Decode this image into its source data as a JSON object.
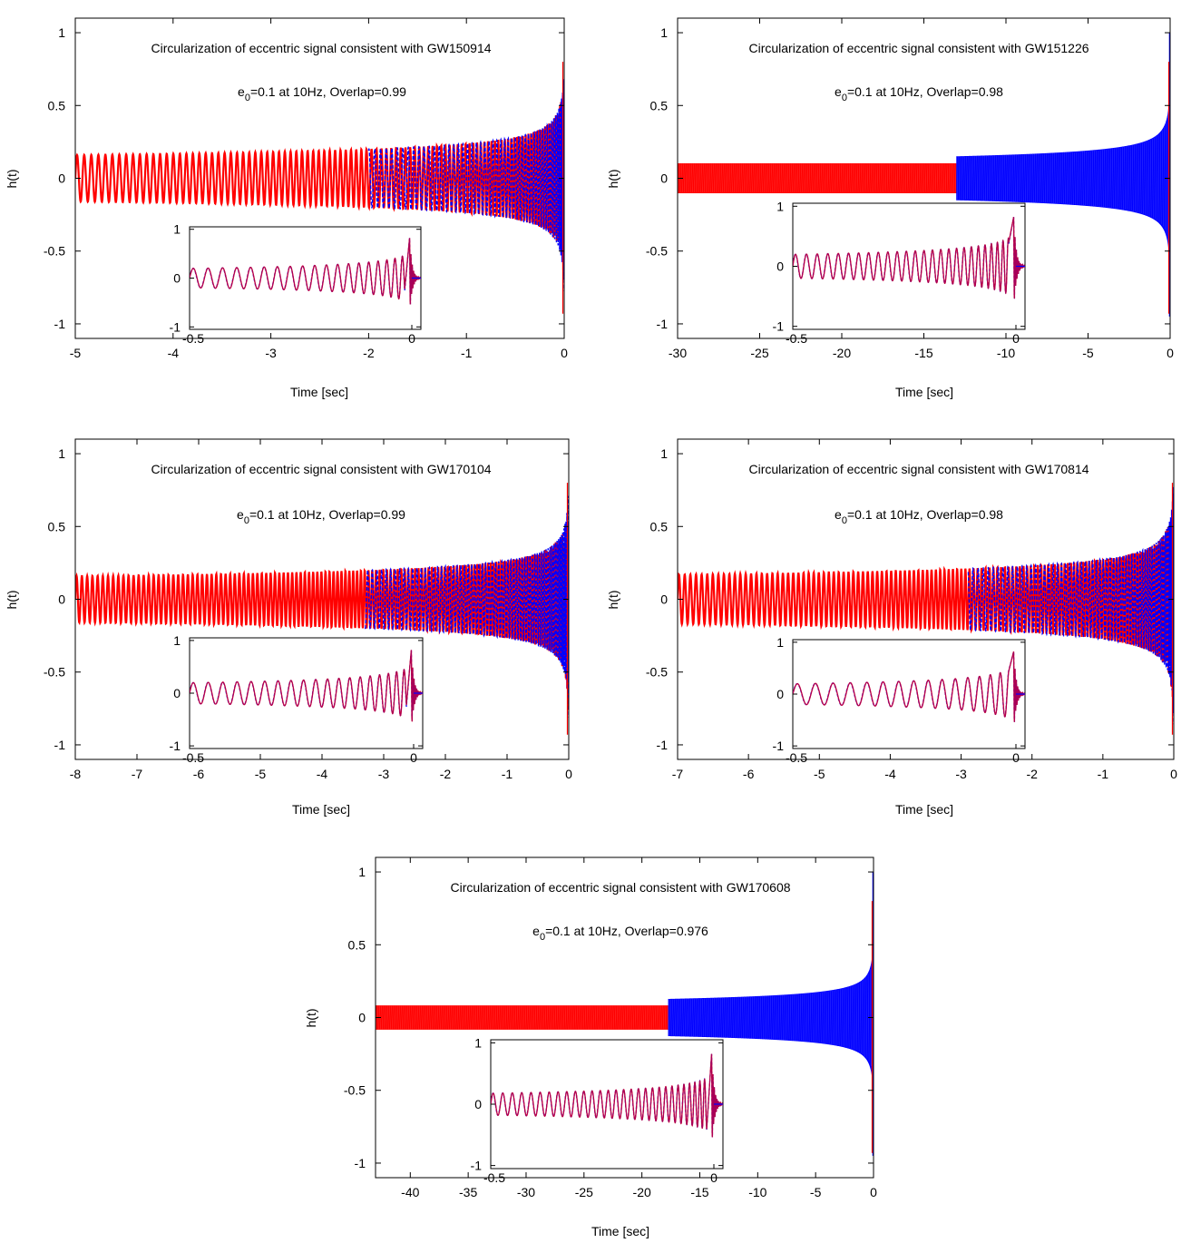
{
  "chart_data": [
    {
      "type": "line",
      "title": "Circularization of eccentric signal consistent with GW150914",
      "subtitle_prefix": "e",
      "subtitle_sub": "0",
      "subtitle_rest": "=0.1 at 10Hz, Overlap=0.99",
      "xlabel": "Time [sec]",
      "ylabel": "h(t)",
      "xlim": [
        -5,
        0
      ],
      "ylim": [
        -1.1,
        1.1
      ],
      "xticks": [
        -5,
        -4,
        -3,
        -2,
        -1,
        0
      ],
      "xtick_labels": [
        "-5",
        "-4",
        "-3",
        "-2",
        "-1",
        "0"
      ],
      "yticks": [
        -1,
        -0.5,
        0,
        0.5,
        1
      ],
      "ytick_labels": [
        "-1",
        "-0.5",
        "0",
        "0.5",
        "1"
      ],
      "series": [
        {
          "color": "#ff0000",
          "t_start": -5,
          "t_end": 0,
          "amp_start": 0.16,
          "amp_end": 1.0,
          "cycles": 110
        },
        {
          "color": "#0000ff",
          "t_start": -2.0,
          "t_end": 0,
          "amp_start": 0.16,
          "amp_end": 1.0,
          "cycles": 95
        }
      ],
      "inset": {
        "xlim": [
          -0.5,
          0
        ],
        "ylim": [
          -1.05,
          1.05
        ],
        "xtick_labels": [
          "-0.5",
          "0"
        ],
        "ytick_labels": [
          "-1",
          "0",
          "1"
        ],
        "cycles": 22,
        "amp_start": 0.2,
        "amp_end": 1.0
      }
    },
    {
      "type": "line",
      "title": "Circularization of eccentric signal consistent with GW151226",
      "subtitle_prefix": "e",
      "subtitle_sub": "0",
      "subtitle_rest": "=0.1 at 10Hz, Overlap=0.98",
      "xlabel": "Time [sec]",
      "ylabel": "h(t)",
      "xlim": [
        -30,
        0
      ],
      "ylim": [
        -1.1,
        1.1
      ],
      "xticks": [
        -30,
        -25,
        -20,
        -15,
        -10,
        -5,
        0
      ],
      "xtick_labels": [
        "-30",
        "-25",
        "-20",
        "-15",
        "-10",
        "-5",
        "0"
      ],
      "yticks": [
        -1,
        -0.5,
        0,
        0.5,
        1
      ],
      "ytick_labels": [
        "-1",
        "-0.5",
        "0",
        "0.5",
        "1"
      ],
      "series": [
        {
          "color": "#ff0000",
          "t_start": -30,
          "t_end": -13,
          "amp_start": 0.1,
          "amp_end": 0.1,
          "cycles": 0
        },
        {
          "color": "#0000ff",
          "t_start": -13,
          "t_end": 0,
          "amp_start": 0.12,
          "amp_end": 1.0,
          "cycles": 0
        }
      ],
      "inset": {
        "xlim": [
          -0.5,
          0
        ],
        "ylim": [
          -1.05,
          1.05
        ],
        "xtick_labels": [
          "-0.5",
          "0"
        ],
        "ytick_labels": [
          "-1",
          "0",
          "1"
        ],
        "cycles": 30,
        "amp_start": 0.2,
        "amp_end": 1.0
      }
    },
    {
      "type": "line",
      "title": "Circularization of eccentric signal consistent with GW170104",
      "subtitle_prefix": "e",
      "subtitle_sub": "0",
      "subtitle_rest": "=0.1 at 10Hz, Overlap=0.99",
      "xlabel": "Time [sec]",
      "ylabel": "h(t)",
      "xlim": [
        -8,
        0
      ],
      "ylim": [
        -1.1,
        1.1
      ],
      "xticks": [
        -8,
        -7,
        -6,
        -5,
        -4,
        -3,
        -2,
        -1,
        0
      ],
      "xtick_labels": [
        "-8",
        "-7",
        "-6",
        "-5",
        "-4",
        "-3",
        "-2",
        "-1",
        "0"
      ],
      "yticks": [
        -1,
        -0.5,
        0,
        0.5,
        1
      ],
      "ytick_labels": [
        "-1",
        "-0.5",
        "0",
        "0.5",
        "1"
      ],
      "series": [
        {
          "color": "#ff0000",
          "t_start": -8,
          "t_end": 0,
          "amp_start": 0.16,
          "amp_end": 1.0,
          "cycles": 150
        },
        {
          "color": "#0000ff",
          "t_start": -3.3,
          "t_end": 0,
          "amp_start": 0.16,
          "amp_end": 1.0,
          "cycles": 120
        }
      ],
      "inset": {
        "xlim": [
          -0.5,
          0
        ],
        "ylim": [
          -1.05,
          1.05
        ],
        "xtick_labels": [
          "-0.5",
          "0"
        ],
        "ytick_labels": [
          "-1",
          "0",
          "1"
        ],
        "cycles": 22,
        "amp_start": 0.2,
        "amp_end": 1.0
      }
    },
    {
      "type": "line",
      "title": "Circularization of eccentric signal consistent with GW170814",
      "subtitle_prefix": "e",
      "subtitle_sub": "0",
      "subtitle_rest": "=0.1 at 10Hz, Overlap=0.98",
      "xlabel": "Time [sec]",
      "ylabel": "h(t)",
      "xlim": [
        -7,
        0
      ],
      "ylim": [
        -1.1,
        1.1
      ],
      "xticks": [
        -7,
        -6,
        -5,
        -4,
        -3,
        -2,
        -1,
        0
      ],
      "xtick_labels": [
        "-7",
        "-6",
        "-5",
        "-4",
        "-3",
        "-2",
        "-1",
        "0"
      ],
      "yticks": [
        -1,
        -0.5,
        0,
        0.5,
        1
      ],
      "ytick_labels": [
        "-1",
        "-0.5",
        "0",
        "0.5",
        "1"
      ],
      "series": [
        {
          "color": "#ff0000",
          "t_start": -7,
          "t_end": 0,
          "amp_start": 0.17,
          "amp_end": 1.0,
          "cycles": 140
        },
        {
          "color": "#0000ff",
          "t_start": -2.9,
          "t_end": 0,
          "amp_start": 0.17,
          "amp_end": 1.0,
          "cycles": 110
        }
      ],
      "inset": {
        "xlim": [
          -0.5,
          0
        ],
        "ylim": [
          -1.05,
          1.05
        ],
        "xtick_labels": [
          "-0.5",
          "0"
        ],
        "ytick_labels": [
          "-1",
          "0",
          "1"
        ],
        "cycles": 18,
        "amp_start": 0.2,
        "amp_end": 1.0
      }
    },
    {
      "type": "line",
      "title": "Circularization of eccentric signal consistent with GW170608",
      "subtitle_prefix": "e",
      "subtitle_sub": "0",
      "subtitle_rest": "=0.1 at 10Hz, Overlap=0.976",
      "xlabel": "Time [sec]",
      "ylabel": "h(t)",
      "xlim": [
        -43,
        0
      ],
      "ylim": [
        -1.1,
        1.1
      ],
      "xticks": [
        -40,
        -35,
        -30,
        -25,
        -20,
        -15,
        -10,
        -5,
        0
      ],
      "xtick_labels": [
        "-40",
        "-35",
        "-30",
        "-25",
        "-20",
        "-15",
        "-10",
        "-5",
        "0"
      ],
      "yticks": [
        -1,
        -0.5,
        0,
        0.5,
        1
      ],
      "ytick_labels": [
        "-1",
        "-0.5",
        "0",
        "0.5",
        "1"
      ],
      "series": [
        {
          "color": "#ff0000",
          "t_start": -43,
          "t_end": -17.7,
          "amp_start": 0.08,
          "amp_end": 0.08,
          "cycles": 0
        },
        {
          "color": "#0000ff",
          "t_start": -17.7,
          "t_end": 0,
          "amp_start": 0.1,
          "amp_end": 1.0,
          "cycles": 0
        }
      ],
      "inset": {
        "xlim": [
          -0.5,
          0
        ],
        "ylim": [
          -1.05,
          1.05
        ],
        "xtick_labels": [
          "-0.5",
          "0"
        ],
        "ytick_labels": [
          "-1",
          "0",
          "1"
        ],
        "cycles": 34,
        "amp_start": 0.18,
        "amp_end": 1.0
      }
    }
  ]
}
